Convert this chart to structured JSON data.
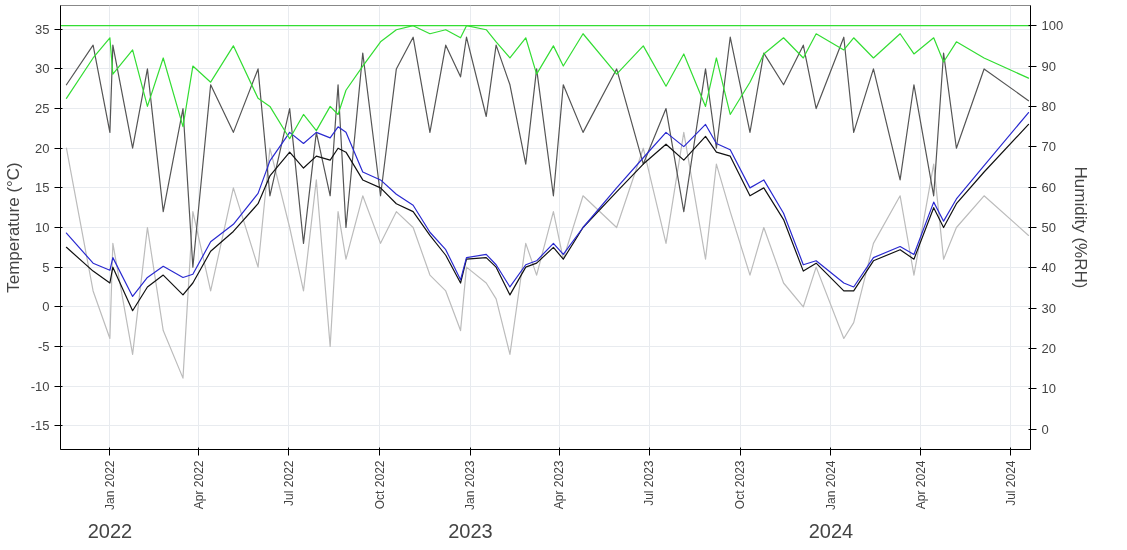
{
  "chart_data": {
    "type": "line",
    "ylabel": "Temperature (°C)",
    "y2label": "Humidity (%RH)",
    "xlim": [
      "2021-11-12",
      "2024-07-21"
    ],
    "ylim": [
      -18,
      38
    ],
    "yticks": [
      -15,
      -10,
      -5,
      0,
      5,
      10,
      15,
      20,
      25,
      30,
      35
    ],
    "y2lim": [
      -5,
      105
    ],
    "y2ticks": [
      0,
      10,
      20,
      30,
      40,
      50,
      60,
      70,
      80,
      90,
      100
    ],
    "xticks": [
      {
        "value": "2022-01-01",
        "label": "Jan 2022"
      },
      {
        "value": "2022-04-01",
        "label": "Apr 2022"
      },
      {
        "value": "2022-07-01",
        "label": "Jul 2022"
      },
      {
        "value": "2022-10-01",
        "label": "Oct 2022"
      },
      {
        "value": "2023-01-01",
        "label": "Jan 2023"
      },
      {
        "value": "2023-04-01",
        "label": "Apr 2023"
      },
      {
        "value": "2023-07-01",
        "label": "Jul 2023"
      },
      {
        "value": "2023-10-01",
        "label": "Oct 2023"
      },
      {
        "value": "2024-01-01",
        "label": "Jan 2024"
      },
      {
        "value": "2024-04-01",
        "label": "Apr 2024"
      },
      {
        "value": "2024-07-01",
        "label": "Jul 2024"
      }
    ],
    "annotations": [
      "2022",
      "2023",
      "2024"
    ],
    "grid": true,
    "marker": "none",
    "line_style": "solid",
    "x": [
      "2021-11-18",
      "2021-12-15",
      "2022-01-01",
      "2022-01-04",
      "2022-01-24",
      "2022-02-08",
      "2022-02-24",
      "2022-03-16",
      "2022-03-26",
      "2022-04-13",
      "2022-05-06",
      "2022-05-31",
      "2022-06-12",
      "2022-07-02",
      "2022-07-16",
      "2022-07-29",
      "2022-08-12",
      "2022-08-20",
      "2022-08-28",
      "2022-09-14",
      "2022-10-02",
      "2022-10-18",
      "2022-11-04",
      "2022-11-21",
      "2022-12-07",
      "2022-12-22",
      "2022-12-28",
      "2023-01-17",
      "2023-01-27",
      "2023-02-10",
      "2023-02-26",
      "2023-03-09",
      "2023-03-26",
      "2023-04-05",
      "2023-04-25",
      "2023-05-29",
      "2023-06-25",
      "2023-07-18",
      "2023-08-05",
      "2023-08-27",
      "2023-09-07",
      "2023-09-21",
      "2023-10-11",
      "2023-10-25",
      "2023-11-14",
      "2023-12-04",
      "2023-12-17",
      "2024-01-14",
      "2024-01-24",
      "2024-02-13",
      "2024-03-11",
      "2024-03-25",
      "2024-04-14",
      "2024-04-24",
      "2024-05-07",
      "2024-06-04",
      "2024-07-19"
    ],
    "series": [
      {
        "color": "#bcbcbc",
        "values": [
          20,
          2,
          -4,
          8,
          -6,
          10,
          -3,
          -9,
          12,
          2,
          15,
          5,
          20,
          10,
          2,
          16,
          -5,
          12,
          6,
          14,
          8,
          12,
          10,
          4,
          2,
          -3,
          5,
          3,
          1,
          -6,
          8,
          4,
          12,
          6,
          14,
          10,
          20,
          8,
          22,
          6,
          18,
          12,
          4,
          10,
          3,
          0,
          5,
          -4,
          -2,
          8,
          14,
          4,
          18,
          6,
          10,
          14,
          9
        ]
      },
      {
        "color": "#555555",
        "values": [
          28,
          33,
          22,
          33,
          20,
          30,
          12,
          25,
          5,
          28,
          22,
          30,
          14,
          25,
          8,
          22,
          14,
          28,
          10,
          32,
          14,
          30,
          34,
          22,
          33,
          29,
          34,
          24,
          33,
          28,
          18,
          30,
          14,
          28,
          22,
          30,
          18,
          25,
          12,
          30,
          20,
          34,
          22,
          32,
          28,
          33,
          25,
          34,
          22,
          30,
          16,
          28,
          14,
          32,
          20,
          30,
          26
        ]
      },
      {
        "color": "#111111",
        "values": [
          7.5,
          4.5,
          3.0,
          5.0,
          -0.5,
          2.5,
          4.0,
          1.5,
          3.0,
          7.0,
          9.5,
          13.0,
          16.5,
          19.5,
          17.5,
          19.0,
          18.5,
          20.0,
          19.5,
          16.0,
          15.0,
          13.0,
          12.0,
          9.0,
          6.5,
          3.0,
          6.0,
          6.2,
          5.0,
          1.5,
          5.0,
          5.5,
          7.5,
          6.0,
          10.0,
          14.5,
          18.0,
          20.5,
          18.5,
          21.5,
          19.5,
          19.0,
          14.0,
          15.0,
          11.0,
          4.5,
          5.5,
          2.0,
          2.0,
          5.8,
          7.2,
          6.0,
          12.5,
          10.0,
          13.0,
          17.0,
          23.0
        ]
      },
      {
        "color": "#2a2ad0",
        "values": [
          9.3,
          5.5,
          4.6,
          6.2,
          1.3,
          3.7,
          5.1,
          3.7,
          4.1,
          8.2,
          10.4,
          14.3,
          18.4,
          22.0,
          20.6,
          22.0,
          21.3,
          22.7,
          22.0,
          17.0,
          16.0,
          14.2,
          12.8,
          9.4,
          7.2,
          3.4,
          6.2,
          6.6,
          5.3,
          2.5,
          5.3,
          5.8,
          8.0,
          6.6,
          10.0,
          15.0,
          18.8,
          22.0,
          20.2,
          23.0,
          20.6,
          19.8,
          15.0,
          16.0,
          11.8,
          5.3,
          5.8,
          3.0,
          2.5,
          6.2,
          7.6,
          6.6,
          13.2,
          10.8,
          13.6,
          17.8,
          24.5
        ]
      },
      {
        "color": "#33dd33",
        "axis": "y2",
        "values": [
          82,
          92,
          97,
          88,
          94,
          80,
          92,
          75,
          90,
          86,
          95,
          82,
          80,
          72,
          78,
          74,
          80,
          78,
          84,
          90,
          96,
          99,
          100,
          98,
          99,
          97,
          100,
          99,
          96,
          92,
          97,
          88,
          95,
          90,
          98,
          88,
          95,
          85,
          93,
          80,
          92,
          78,
          86,
          93,
          97,
          92,
          98,
          94,
          97,
          92,
          98,
          93,
          97,
          91,
          96,
          92,
          87
        ]
      },
      {
        "color": "#33dd33",
        "axis": "y2",
        "x": [
          "2021-11-12",
          "2024-07-21"
        ],
        "values": [
          100,
          100
        ]
      }
    ]
  }
}
